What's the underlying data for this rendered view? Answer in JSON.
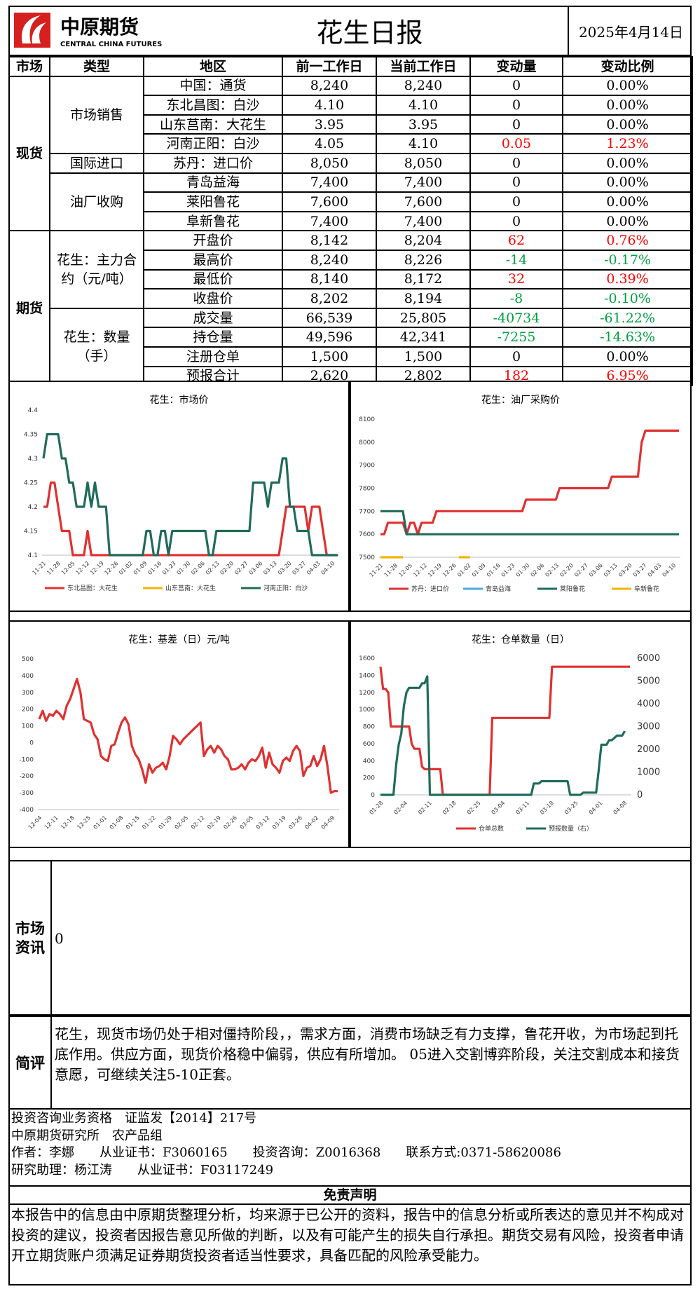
{
  "header": {
    "logo_cn": "中原期货",
    "logo_en": "CENTRAL CHINA FUTURES",
    "title": "花生日报",
    "date": "2025年4月14日"
  },
  "table": {
    "headers": [
      "市场",
      "类型",
      "地区",
      "前一工作日",
      "当前工作日",
      "变动量",
      "变动比例"
    ],
    "market_spot": "现货",
    "market_futures": "期货",
    "group_sales": "市场销售",
    "group_import": "国际进口",
    "group_mill": "油厂收购",
    "group_contract": "花生：主力合约（元/吨）",
    "group_volume": "花生：数量（手）",
    "rows": [
      {
        "region": "中国：通货",
        "prev": "8,240",
        "curr": "8,240",
        "chg": "0",
        "pct": "0.00%",
        "dir": "flat"
      },
      {
        "region": "东北昌图：白沙",
        "prev": "4.10",
        "curr": "4.10",
        "chg": "0",
        "pct": "0.00%",
        "dir": "flat"
      },
      {
        "region": "山东莒南：大花生",
        "prev": "3.95",
        "curr": "3.95",
        "chg": "0",
        "pct": "0.00%",
        "dir": "flat"
      },
      {
        "region": "河南正阳：白沙",
        "prev": "4.05",
        "curr": "4.10",
        "chg": "0.05",
        "pct": "1.23%",
        "dir": "up"
      },
      {
        "region": "苏丹：进口价",
        "prev": "8,050",
        "curr": "8,050",
        "chg": "0",
        "pct": "0.00%",
        "dir": "flat"
      },
      {
        "region": "青岛益海",
        "prev": "7,400",
        "curr": "7,400",
        "chg": "0",
        "pct": "0.00%",
        "dir": "flat"
      },
      {
        "region": "莱阳鲁花",
        "prev": "7,600",
        "curr": "7,600",
        "chg": "0",
        "pct": "0.00%",
        "dir": "flat"
      },
      {
        "region": "阜新鲁花",
        "prev": "7,400",
        "curr": "7,400",
        "chg": "0",
        "pct": "0.00%",
        "dir": "flat"
      },
      {
        "region": "开盘价",
        "prev": "8,142",
        "curr": "8,204",
        "chg": "62",
        "pct": "0.76%",
        "dir": "up"
      },
      {
        "region": "最高价",
        "prev": "8,240",
        "curr": "8,226",
        "chg": "-14",
        "pct": "-0.17%",
        "dir": "down"
      },
      {
        "region": "最低价",
        "prev": "8,140",
        "curr": "8,172",
        "chg": "32",
        "pct": "0.39%",
        "dir": "up"
      },
      {
        "region": "收盘价",
        "prev": "8,202",
        "curr": "8,194",
        "chg": "-8",
        "pct": "-0.10%",
        "dir": "down"
      },
      {
        "region": "成交量",
        "prev": "66,539",
        "curr": "25,805",
        "chg": "-40734",
        "pct": "-61.22%",
        "dir": "down"
      },
      {
        "region": "持仓量",
        "prev": "49,596",
        "curr": "42,341",
        "chg": "-7255",
        "pct": "-14.63%",
        "dir": "down"
      },
      {
        "region": "注册仓单",
        "prev": "1,500",
        "curr": "1,500",
        "chg": "0",
        "pct": "0.00%",
        "dir": "flat"
      },
      {
        "region": "预报合计",
        "prev": "2,620",
        "curr": "2,802",
        "chg": "182",
        "pct": "6.95%",
        "dir": "up"
      }
    ]
  },
  "chart_data": [
    {
      "type": "line",
      "title": "花生：市场价",
      "ylim": [
        4.1,
        4.4
      ],
      "yticks": [
        "4.4",
        "4.35",
        "4.3",
        "4.25",
        "4.2",
        "4.15",
        "4.1"
      ],
      "xticks": [
        "11-21",
        "11-28",
        "12-05",
        "12-12",
        "12-19",
        "12-26",
        "01-02",
        "01-09",
        "01-16",
        "01-23",
        "01-30",
        "02-06",
        "02-13",
        "02-20",
        "02-27",
        "03-06",
        "03-13",
        "03-20",
        "03-27",
        "04-03",
        "04-10"
      ],
      "series": [
        {
          "name": "东北昌图：大花生",
          "color": "#e03030",
          "values": [
            4.2,
            4.2,
            4.25,
            4.25,
            4.2,
            4.15,
            4.15,
            4.15,
            4.1,
            4.1,
            4.1,
            4.1,
            4.15,
            4.1,
            4.1,
            4.1,
            4.1,
            4.1,
            4.1,
            4.1,
            4.1,
            4.1,
            4.1,
            4.1,
            4.1,
            4.1,
            4.1,
            4.1,
            4.1,
            4.1,
            4.1,
            4.1,
            4.1,
            4.1,
            4.1,
            4.1,
            4.1,
            4.1,
            4.1,
            4.1,
            4.1,
            4.1,
            4.1,
            4.1,
            4.1,
            4.1,
            4.1,
            4.1,
            4.1,
            4.1,
            4.1,
            4.1,
            4.1,
            4.1,
            4.1,
            4.1,
            4.1,
            4.1,
            4.1,
            4.1,
            4.1,
            4.1,
            4.1,
            4.1,
            4.1,
            4.15,
            4.2,
            4.2,
            4.2,
            4.2,
            4.2,
            4.2,
            4.15,
            4.2,
            4.2,
            4.2,
            4.15,
            4.1,
            4.1,
            4.1,
            4.1
          ]
        },
        {
          "name": "山东莒南：大花生",
          "color": "#f0b400",
          "values": []
        },
        {
          "name": "河南正阳：白沙",
          "color": "#1f6b5a",
          "values": [
            4.3,
            4.35,
            4.35,
            4.35,
            4.35,
            4.3,
            4.3,
            4.25,
            4.25,
            4.2,
            4.2,
            4.2,
            4.25,
            4.2,
            4.25,
            4.2,
            4.2,
            4.2,
            4.1,
            4.1,
            4.1,
            4.1,
            4.1,
            4.1,
            4.1,
            4.1,
            4.1,
            4.1,
            4.15,
            4.15,
            4.1,
            4.1,
            4.15,
            4.15,
            4.1,
            4.15,
            4.15,
            4.15,
            4.15,
            4.15,
            4.15,
            4.15,
            4.15,
            4.15,
            4.15,
            4.1,
            4.1,
            4.15,
            4.15,
            4.15,
            4.15,
            4.15,
            4.15,
            4.15,
            4.15,
            4.15,
            4.15,
            4.25,
            4.25,
            4.25,
            4.25,
            4.2,
            4.25,
            4.25,
            4.25,
            4.3,
            4.3,
            4.2,
            4.2,
            4.15,
            4.15,
            4.15,
            4.15,
            4.1,
            4.1,
            4.1,
            4.1,
            4.1,
            4.1,
            4.1,
            4.1
          ]
        }
      ]
    },
    {
      "type": "line",
      "title": "花生：油厂采购价",
      "ylim": [
        7500,
        8100
      ],
      "yticks": [
        "8100",
        "8000",
        "7900",
        "7800",
        "7700",
        "7600",
        "7500"
      ],
      "xticks": [
        "11-21",
        "11-28",
        "12-05",
        "12-12",
        "12-19",
        "12-26",
        "01-02",
        "01-09",
        "01-16",
        "01-23",
        "01-30",
        "02-06",
        "02-13",
        "02-20",
        "02-27",
        "03-06",
        "03-13",
        "03-20",
        "03-27",
        "04-03",
        "04-10"
      ],
      "series": [
        {
          "name": "苏丹：进口价",
          "color": "#e03030",
          "values": [
            7600,
            7600,
            7650,
            7650,
            7650,
            7650,
            7650,
            7600,
            7650,
            7650,
            7600,
            7650,
            7650,
            7650,
            7650,
            7700,
            7700,
            7700,
            7700,
            7700,
            7700,
            7700,
            7700,
            7700,
            7700,
            7700,
            7700,
            7700,
            7700,
            7700,
            7700,
            7700,
            7700,
            7700,
            7700,
            7700,
            7700,
            7700,
            7700,
            7750,
            7750,
            7750,
            7750,
            7750,
            7750,
            7750,
            7750,
            7750,
            7800,
            7800,
            7800,
            7800,
            7800,
            7800,
            7800,
            7800,
            7800,
            7800,
            7800,
            7800,
            7800,
            7800,
            7850,
            7850,
            7850,
            7850,
            7850,
            7850,
            7850,
            7850,
            8000,
            8050,
            8050,
            8050,
            8050,
            8050,
            8050,
            8050,
            8050,
            8050,
            8050
          ]
        },
        {
          "name": "青岛益海",
          "color": "#4aa8e0",
          "values": []
        },
        {
          "name": "莱阳鲁花",
          "color": "#1f6b5a",
          "values": [
            7700,
            7700,
            7700,
            7700,
            7700,
            7700,
            7700,
            7600,
            7600,
            7600,
            7600,
            7600,
            7600,
            7600,
            7600,
            7600,
            7600,
            7600,
            7600,
            7600,
            7600,
            7600,
            7600,
            7600,
            7600,
            7600,
            7600,
            7600,
            7600,
            7600,
            7600,
            7600,
            7600,
            7600,
            7600,
            7600,
            7600,
            7600,
            7600,
            7600,
            7600,
            7600,
            7600,
            7600,
            7600,
            7600,
            7600,
            7600,
            7600,
            7600,
            7600,
            7600,
            7600,
            7600,
            7600,
            7600,
            7600,
            7600,
            7600,
            7600,
            7600,
            7600,
            7600,
            7600,
            7600,
            7600,
            7600,
            7600,
            7600,
            7600,
            7600,
            7600,
            7600,
            7600,
            7600,
            7600,
            7600,
            7600,
            7600,
            7600,
            7600
          ]
        },
        {
          "name": "阜新鲁花",
          "color": "#f0b400",
          "values": [
            7500,
            7500,
            7500,
            7500,
            7500,
            7500,
            7500,
            null,
            null,
            null,
            null,
            null,
            null,
            null,
            null,
            null,
            null,
            null,
            null,
            null,
            null,
            7500,
            7500,
            7500,
            7500
          ]
        }
      ]
    },
    {
      "type": "line",
      "title": "花生：基差（日）元/吨",
      "ylim": [
        -400,
        500
      ],
      "yticks": [
        "500",
        "400",
        "300",
        "200",
        "100",
        "0",
        "-100",
        "-200",
        "-300",
        "-400"
      ],
      "xticks": [
        "12-04",
        "12-11",
        "12-18",
        "12-25",
        "01-01",
        "01-08",
        "01-15",
        "01-22",
        "01-29",
        "02-05",
        "02-12",
        "02-19",
        "02-26",
        "03-05",
        "03-12",
        "03-19",
        "03-26",
        "04-02",
        "04-09"
      ],
      "series": [
        {
          "name": "",
          "color": "#e03030",
          "values": [
            140,
            190,
            130,
            170,
            160,
            190,
            170,
            140,
            220,
            260,
            320,
            380,
            300,
            140,
            130,
            120,
            50,
            20,
            -80,
            -100,
            -110,
            -20,
            -10,
            60,
            120,
            150,
            110,
            -20,
            -70,
            -100,
            -160,
            -240,
            -130,
            -180,
            -150,
            -140,
            -120,
            -160,
            -80,
            40,
            20,
            -10,
            20,
            40,
            60,
            80,
            100,
            120,
            -80,
            -40,
            -20,
            -60,
            -20,
            -40,
            -80,
            -100,
            -160,
            -160,
            -150,
            -130,
            -160,
            -120,
            -100,
            -110,
            -80,
            -30,
            -150,
            -60,
            -130,
            -150,
            -180,
            -110,
            -90,
            -110,
            -50,
            -20,
            -50,
            -200,
            -150,
            -140,
            -80,
            -140,
            -100,
            -20,
            -140,
            -300,
            -290,
            -290
          ]
        }
      ]
    },
    {
      "type": "line",
      "title": "花生：仓单数量（日）",
      "ylim": [
        0,
        1600
      ],
      "ylim_right": [
        0,
        6000
      ],
      "yticks": [
        "1600",
        "1400",
        "1200",
        "1000",
        "800",
        "600",
        "400",
        "200",
        "0"
      ],
      "yticks_right": [
        "6000",
        "5000",
        "4000",
        "3000",
        "2000",
        "1000",
        "0"
      ],
      "xticks": [
        "01-28",
        "02-04",
        "02-11",
        "02-18",
        "02-25",
        "03-04",
        "03-11",
        "03-18",
        "03-25",
        "04-01",
        "04-08"
      ],
      "series": [
        {
          "name": "仓单总数",
          "color": "#e03030",
          "axis": "left",
          "values": [
            1500,
            1240,
            1240,
            1200,
            800,
            800,
            800,
            800,
            800,
            800,
            800,
            800,
            600,
            540,
            540,
            540,
            330,
            300,
            300,
            300,
            300,
            300,
            300,
            300,
            0,
            0,
            0,
            0,
            0,
            0,
            0,
            0,
            0,
            0,
            0,
            0,
            0,
            0,
            0,
            0,
            0,
            0,
            0,
            900,
            900,
            900,
            900,
            900,
            900,
            900,
            900,
            900,
            900,
            900,
            900,
            900,
            900,
            900,
            900,
            900,
            900,
            900,
            900,
            900,
            900,
            900,
            1500,
            1500,
            1500,
            1500,
            1500,
            1500,
            1500,
            1500,
            1500,
            1500,
            1500,
            1500,
            1500,
            1500,
            1500,
            1500,
            1500,
            1500,
            1500,
            1500,
            1500,
            1500,
            1500,
            1500,
            1500,
            1500,
            1500,
            1500,
            1500,
            1500,
            1500
          ]
        },
        {
          "name": "预报数量（右）",
          "color": "#1f6b5a",
          "axis": "right",
          "values": [
            0,
            0,
            0,
            0,
            0,
            0,
            1300,
            2200,
            2700,
            3900,
            4500,
            4700,
            4700,
            4700,
            4700,
            4700,
            4900,
            4900,
            5200,
            0,
            0,
            0,
            0,
            0,
            0,
            0,
            0,
            0,
            0,
            0,
            0,
            0,
            0,
            0,
            0,
            0,
            0,
            0,
            0,
            0,
            0,
            0,
            0,
            0,
            0,
            0,
            0,
            0,
            0,
            0,
            0,
            0,
            0,
            0,
            0,
            0,
            0,
            0,
            0,
            500,
            500,
            500,
            600,
            600,
            600,
            600,
            600,
            600,
            600,
            600,
            600,
            600,
            600,
            0,
            0,
            0,
            0,
            0,
            100,
            100,
            100,
            100,
            100,
            100,
            1100,
            2200,
            2200,
            2200,
            2400,
            2400,
            2500,
            2600,
            2600,
            2600,
            2800
          ]
        }
      ]
    }
  ],
  "news": {
    "label": "市场资讯",
    "content": "0"
  },
  "comment": {
    "label": "简评",
    "content": "花生，现货市场仍处于相对僵持阶段，，需求方面，消费市场缺乏有力支撑，鲁花开收，为市场起到托底作用。供应方面，现货价格稳中偏弱，供应有所增加。 05进入交割博弈阶段，关注交割成本和接货意愿，可继续关注5-10正套。"
  },
  "footer": {
    "line1": "投资咨询业务资格　证监发【2014】217号",
    "line2": "中原期货研究所　农产品组",
    "line3": "作者：李娜　　从业证书：F3060165　　投资咨询：Z0016368　　联系方式:0371-58620086",
    "line4": "研究助理：杨江涛　　从业证书：F03117249"
  },
  "disclaimer": {
    "title": "免责声明",
    "text": "本报告中的信息由中原期货整理分析，均来源于已公开的资料，报告中的信息分析或所表达的意见并不构成对投资的建议，投资者因报告意见所做的判断，以及有可能产生的损失自行承担。期货交易有风险，投资者申请开立期货账户须满足证券期货投资者适当性要求，具备匹配的风险承受能力。"
  },
  "colors": {
    "up": "#ff0000",
    "down": "#00a040",
    "logo_red": "#d62020"
  }
}
